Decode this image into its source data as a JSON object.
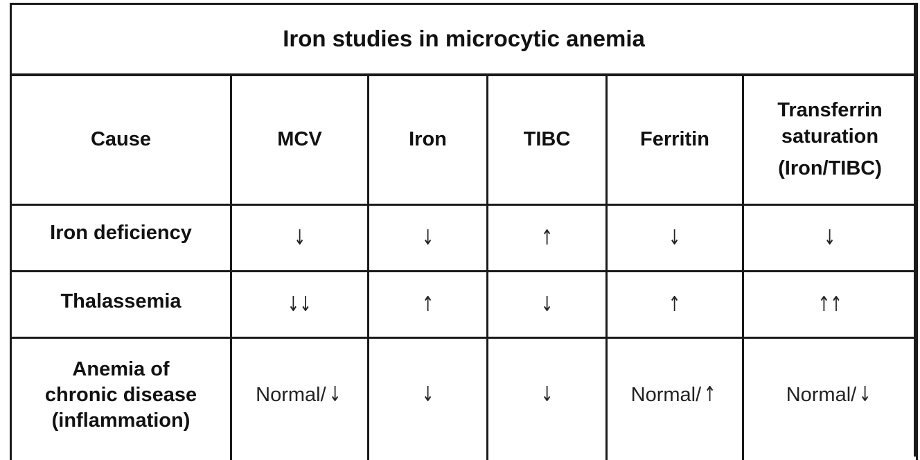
{
  "title": "Iron studies in microcytic anemia",
  "headers": {
    "cause": "Cause",
    "mcv": "MCV",
    "iron": "Iron",
    "tibc": "TIBC",
    "ferritin": "Ferritin",
    "transferrin_line1": "Transferrin",
    "transferrin_line2": "saturation",
    "transferrin_line3": "(Iron/TIBC)"
  },
  "rows": [
    {
      "cause": "Iron deficiency",
      "mcv": "↓",
      "iron": "↓",
      "tibc": "↑",
      "ferritin": "↓",
      "transferrin_saturation": "↓"
    },
    {
      "cause": "Thalassemia",
      "mcv": "↓↓",
      "iron": "↑",
      "tibc": "↓",
      "ferritin": "↑",
      "transferrin_saturation": "↑↑"
    },
    {
      "cause_line1": "Anemia of",
      "cause_line2": "chronic disease",
      "cause_line3": "(inflammation)",
      "mcv_text": "Normal/",
      "mcv_arrow": "↓",
      "iron": "↓",
      "tibc": "↓",
      "ferritin_text": "Normal/",
      "ferritin_arrow": "↑",
      "transferrin_text": "Normal/",
      "transferrin_arrow": "↓"
    }
  ]
}
